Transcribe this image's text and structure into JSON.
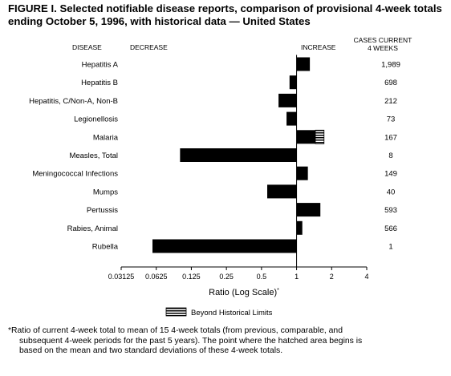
{
  "title_lines": [
    "FIGURE I. Selected notifiable disease reports, comparison of provisional 4-week totals",
    "ending October 5, 1996, with historical data — United States"
  ],
  "footnote_lines": [
    "*Ratio of current 4-week total to mean of 15 4-week totals (from previous, comparable, and",
    "subsequent 4-week periods for the past 5 years). The point where the hatched area begins is",
    "based on the mean and two standard deviations of these 4-week totals."
  ],
  "chart_data": {
    "type": "bar",
    "orientation": "horizontal",
    "headers": {
      "disease": "DISEASE",
      "decrease": "DECREASE",
      "increase": "INCREASE",
      "cases_line1": "CASES CURRENT",
      "cases_line2": "4 WEEKS"
    },
    "categories": [
      "Hepatitis A",
      "Hepatitis B",
      "Hepatitis, C/Non-A, Non-B",
      "Legionellosis",
      "Malaria",
      "Measles, Total",
      "Meningococcal Infections",
      "Mumps",
      "Pertussis",
      "Rabies, Animal",
      "Rubella"
    ],
    "values": [
      1.3,
      0.87,
      0.7,
      0.82,
      1.72,
      0.1,
      1.25,
      0.56,
      1.6,
      1.12,
      0.058
    ],
    "historical_limit": [
      null,
      null,
      null,
      null,
      1.45,
      null,
      null,
      null,
      null,
      null,
      null
    ],
    "cases": [
      "1,989",
      "698",
      "212",
      "73",
      "167",
      "8",
      "149",
      "40",
      "593",
      "566",
      "1"
    ],
    "xscale": "log2",
    "xlim": [
      0.03125,
      4
    ],
    "xticks": [
      0.03125,
      0.0625,
      0.125,
      0.25,
      0.5,
      1,
      2,
      4
    ],
    "xticklabels": [
      "0.03125",
      "0.0625",
      "0.125",
      "0.25",
      "0.5",
      "1",
      "2",
      "4"
    ],
    "xlabel": "Ratio (Log Scale)",
    "xlabel_mark": "*",
    "legend": {
      "label": "Beyond Historical Limits",
      "placement": "bottom"
    }
  },
  "colors": {
    "bar": "#000000",
    "background": "#ffffff"
  }
}
